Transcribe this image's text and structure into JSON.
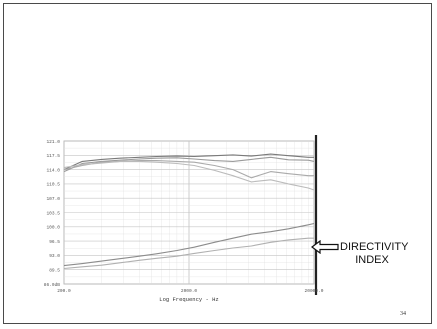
{
  "slide": {
    "page_number": "34",
    "annotation": "DIRECTIVITY INDEX",
    "annotation_lines": [
      "DIRECTIVITY",
      "INDEX"
    ]
  },
  "chart_data": {
    "type": "line",
    "title": "",
    "xlabel": "Log Frequency - Hz",
    "ylabel": "",
    "xscale": "log",
    "xlim": [
      200,
      20000
    ],
    "ylim": [
      86,
      121
    ],
    "x_ticks": [
      200,
      2000,
      20000
    ],
    "x_tick_labels": [
      "200.0",
      "2000.0",
      "20000.0"
    ],
    "y_ticks": [
      86,
      89.5,
      93,
      96.5,
      100,
      103.5,
      107,
      110.5,
      114,
      117.5,
      121
    ],
    "y_tick_labels": [
      "86.0dB",
      "89.5",
      "93.0",
      "96.5",
      "100.0",
      "103.5",
      "107.0",
      "110.5",
      "114.0",
      "117.5",
      "121.0"
    ],
    "grid": true,
    "legend": "none",
    "x": [
      200,
      280,
      400,
      560,
      800,
      1100,
      1600,
      2200,
      3200,
      4500,
      6300,
      9000,
      12500,
      18000,
      20000
    ],
    "series": [
      {
        "color": "#7a7a7a",
        "values": [
          114.0,
          116.0,
          116.5,
          116.8,
          117.0,
          117.2,
          117.3,
          117.2,
          117.4,
          117.6,
          117.3,
          117.8,
          117.4,
          117.0,
          117.0
        ]
      },
      {
        "color": "#9a9a9a",
        "values": [
          113.5,
          115.5,
          116.0,
          116.3,
          116.6,
          116.8,
          116.9,
          116.6,
          116.2,
          116.0,
          116.5,
          117.0,
          116.4,
          116.3,
          116.0
        ]
      },
      {
        "color": "#aaaaaa",
        "values": [
          114.0,
          115.0,
          115.8,
          116.0,
          116.2,
          116.2,
          116.0,
          115.8,
          115.0,
          114.0,
          112.0,
          113.5,
          113.0,
          112.5,
          112.5
        ]
      },
      {
        "color": "#bbbbbb",
        "values": [
          114.5,
          115.2,
          115.6,
          116.0,
          116.0,
          115.8,
          115.5,
          115.0,
          113.8,
          112.5,
          111.0,
          111.5,
          110.5,
          109.5,
          109.0
        ]
      },
      {
        "color": "#8c8c8c",
        "values": [
          90.5,
          91.0,
          91.6,
          92.2,
          92.8,
          93.4,
          94.2,
          95.0,
          96.2,
          97.2,
          98.2,
          98.8,
          99.5,
          100.5,
          100.8
        ]
      },
      {
        "color": "#b0b0b0",
        "values": [
          89.8,
          90.2,
          90.6,
          91.2,
          91.8,
          92.3,
          92.8,
          93.5,
          94.2,
          94.8,
          95.3,
          96.2,
          96.8,
          97.2,
          97.2
        ]
      }
    ]
  }
}
